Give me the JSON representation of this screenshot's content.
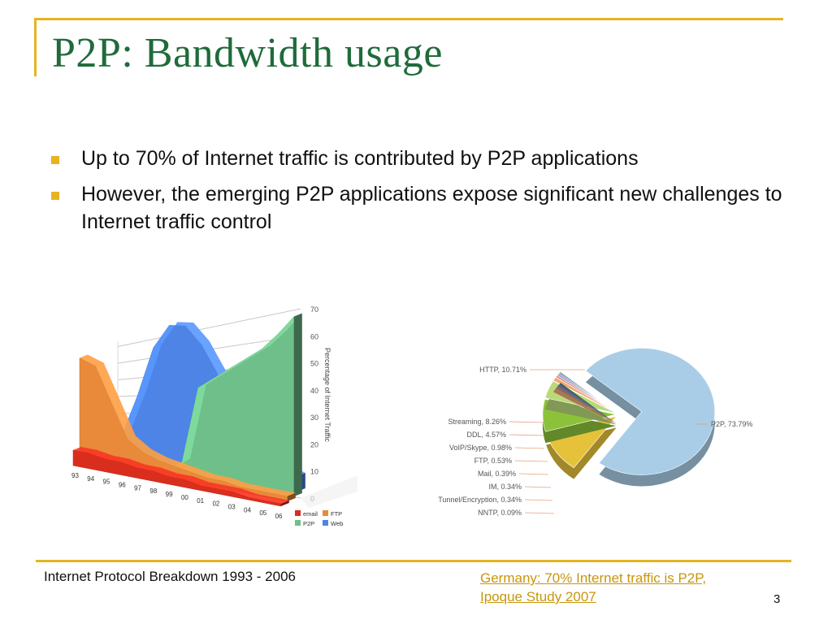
{
  "slide": {
    "title": "P2P: Bandwidth usage",
    "bullets": [
      "Up to 70% of Internet traffic is contributed by P2P applications",
      "However, the emerging P2P applications expose significant new challenges to Internet traffic control"
    ],
    "caption_left": "Internet Protocol Breakdown 1993 - 2006",
    "caption_right": "Germany: 70% Internet traffic is P2P, Ipoque Study 2007",
    "page_number": "3"
  },
  "colors": {
    "accent": "#e6b422",
    "title": "#1f6b3a",
    "link": "#c8960c"
  },
  "chart_data": [
    {
      "type": "area",
      "title": "",
      "ylabel": "Percentage of Internet Traffic",
      "ylim": [
        0,
        70
      ],
      "yticks": [
        "0",
        "10",
        "20",
        "30",
        "40",
        "50",
        "60",
        "70"
      ],
      "categories": [
        "93",
        "94",
        "95",
        "96",
        "97",
        "98",
        "99",
        "00",
        "01",
        "02",
        "03",
        "04",
        "05",
        "06"
      ],
      "series": [
        {
          "name": "email",
          "color": "#d92e1e",
          "values": [
            6,
            6,
            5,
            5,
            4,
            4,
            3,
            3,
            2,
            2,
            2,
            1,
            1,
            1
          ]
        },
        {
          "name": "FTP",
          "color": "#e88a3a",
          "values": [
            40,
            38,
            25,
            12,
            8,
            6,
            5,
            4,
            3,
            3,
            2,
            2,
            2,
            2
          ]
        },
        {
          "name": "P2P",
          "color": "#6fbf8a",
          "values": [
            0,
            0,
            0,
            0,
            0,
            0,
            5,
            35,
            40,
            45,
            50,
            55,
            62,
            70
          ]
        },
        {
          "name": "Web",
          "color": "#4d84e6",
          "values": [
            0,
            2,
            8,
            25,
            45,
            55,
            56,
            50,
            40,
            25,
            15,
            10,
            8,
            6
          ]
        }
      ],
      "legend_position": "bottom-right"
    },
    {
      "type": "pie",
      "labels": [
        "P2P, 73.79%",
        "HTTP, 10.71%",
        "Streaming, 8.26%",
        "DDL, 4.57%",
        "VoIP/Skype, 0.98%",
        "FTP, 0.53%",
        "Mail, 0.39%",
        "IM, 0.34%",
        "Tunnel/Encryption, 0.34%",
        "NNTP, 0.09%"
      ],
      "values": [
        73.79,
        10.71,
        8.26,
        4.57,
        0.98,
        0.53,
        0.39,
        0.34,
        0.34,
        0.09
      ],
      "colors": [
        "#a9cde6",
        "#e6c23a",
        "#8cc23a",
        "#b9d97a",
        "#f0a878",
        "#e88a6a",
        "#6a9ecf",
        "#9c6ac0",
        "#3a8a8a",
        "#2a5a5a"
      ]
    }
  ]
}
